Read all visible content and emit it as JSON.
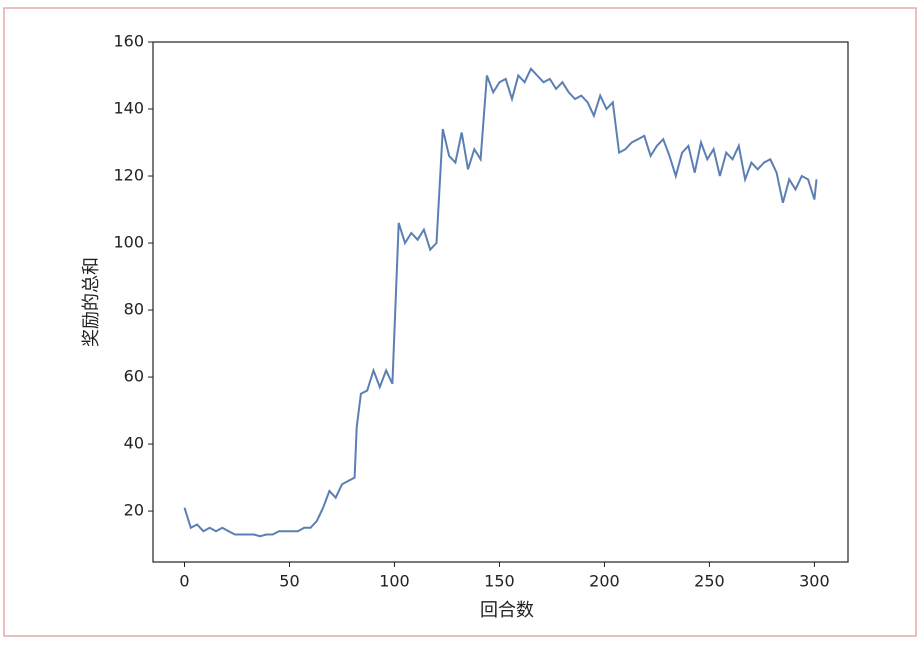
{
  "chart_data": {
    "type": "line",
    "xlabel": "回合数",
    "ylabel": "奖励的总和",
    "x": [
      0,
      3,
      6,
      9,
      12,
      15,
      18,
      21,
      24,
      27,
      30,
      33,
      36,
      39,
      42,
      45,
      48,
      51,
      54,
      57,
      60,
      63,
      66,
      69,
      72,
      75,
      78,
      81,
      82,
      84,
      87,
      90,
      93,
      96,
      99,
      102,
      105,
      108,
      111,
      114,
      117,
      120,
      123,
      126,
      129,
      132,
      135,
      138,
      141,
      144,
      147,
      150,
      153,
      156,
      159,
      162,
      165,
      168,
      171,
      174,
      177,
      180,
      183,
      186,
      189,
      192,
      195,
      198,
      201,
      204,
      207,
      210,
      213,
      216,
      219,
      222,
      225,
      228,
      231,
      234,
      237,
      240,
      243,
      246,
      249,
      252,
      255,
      258,
      261,
      264,
      267,
      270,
      273,
      276,
      279,
      282,
      285,
      288,
      291,
      294,
      297,
      300,
      301
    ],
    "series": [
      {
        "color": "#5b7fb4",
        "values": [
          21,
          15,
          16,
          14,
          15,
          14,
          15,
          14,
          13,
          13,
          13,
          13,
          12.5,
          13,
          13,
          14,
          14,
          14,
          14,
          15,
          15,
          17,
          21,
          26,
          24,
          28,
          29,
          30,
          45,
          55,
          56,
          62,
          57,
          62,
          58,
          106,
          100,
          103,
          101,
          104,
          98,
          100,
          134,
          126,
          124,
          133,
          122,
          128,
          125,
          150,
          145,
          148,
          149,
          143,
          150,
          148,
          152,
          150,
          148,
          149,
          146,
          148,
          145,
          143,
          144,
          142,
          138,
          144,
          140,
          142,
          127,
          128,
          130,
          131,
          132,
          126,
          129,
          131,
          126,
          120,
          127,
          129,
          121,
          130,
          125,
          128,
          120,
          127,
          125,
          129,
          119,
          124,
          122,
          124,
          125,
          121,
          112,
          119,
          116,
          120,
          119,
          113,
          119
        ]
      }
    ],
    "xlim": [
      -15,
      316
    ],
    "ylim": [
      4.8,
      160
    ],
    "xticks": [
      0,
      50,
      100,
      150,
      200,
      250,
      300
    ],
    "yticks": [
      20,
      40,
      60,
      80,
      100,
      120,
      140,
      160
    ]
  }
}
